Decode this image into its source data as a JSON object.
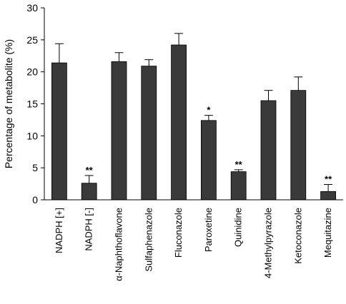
{
  "chart_data": {
    "type": "bar",
    "title": "",
    "xlabel": "",
    "ylabel": "Percentage of metabolite (%)",
    "ylim": [
      0,
      30
    ],
    "yticks": [
      0,
      5,
      10,
      15,
      20,
      25,
      30
    ],
    "grid": false,
    "legend": "none",
    "bar_color": "#3a3a3a",
    "categories": [
      "NADPH [+]",
      "NADPH [-]",
      "α-Naphthoflavone",
      "Sulfaphenazole",
      "Fluconazole",
      "Paroxetine",
      "Quinidine",
      "4-Methylpyrazole",
      "Ketoconazole",
      "Mequitazine"
    ],
    "values": [
      21.4,
      2.6,
      21.6,
      20.9,
      24.2,
      12.4,
      4.4,
      15.5,
      17.1,
      1.3
    ],
    "errors": [
      3.0,
      1.2,
      1.4,
      1.0,
      1.8,
      0.8,
      0.3,
      1.6,
      2.1,
      1.1
    ],
    "significance": [
      "",
      "**",
      "",
      "",
      "",
      "*",
      "**",
      "",
      "",
      "**"
    ]
  }
}
